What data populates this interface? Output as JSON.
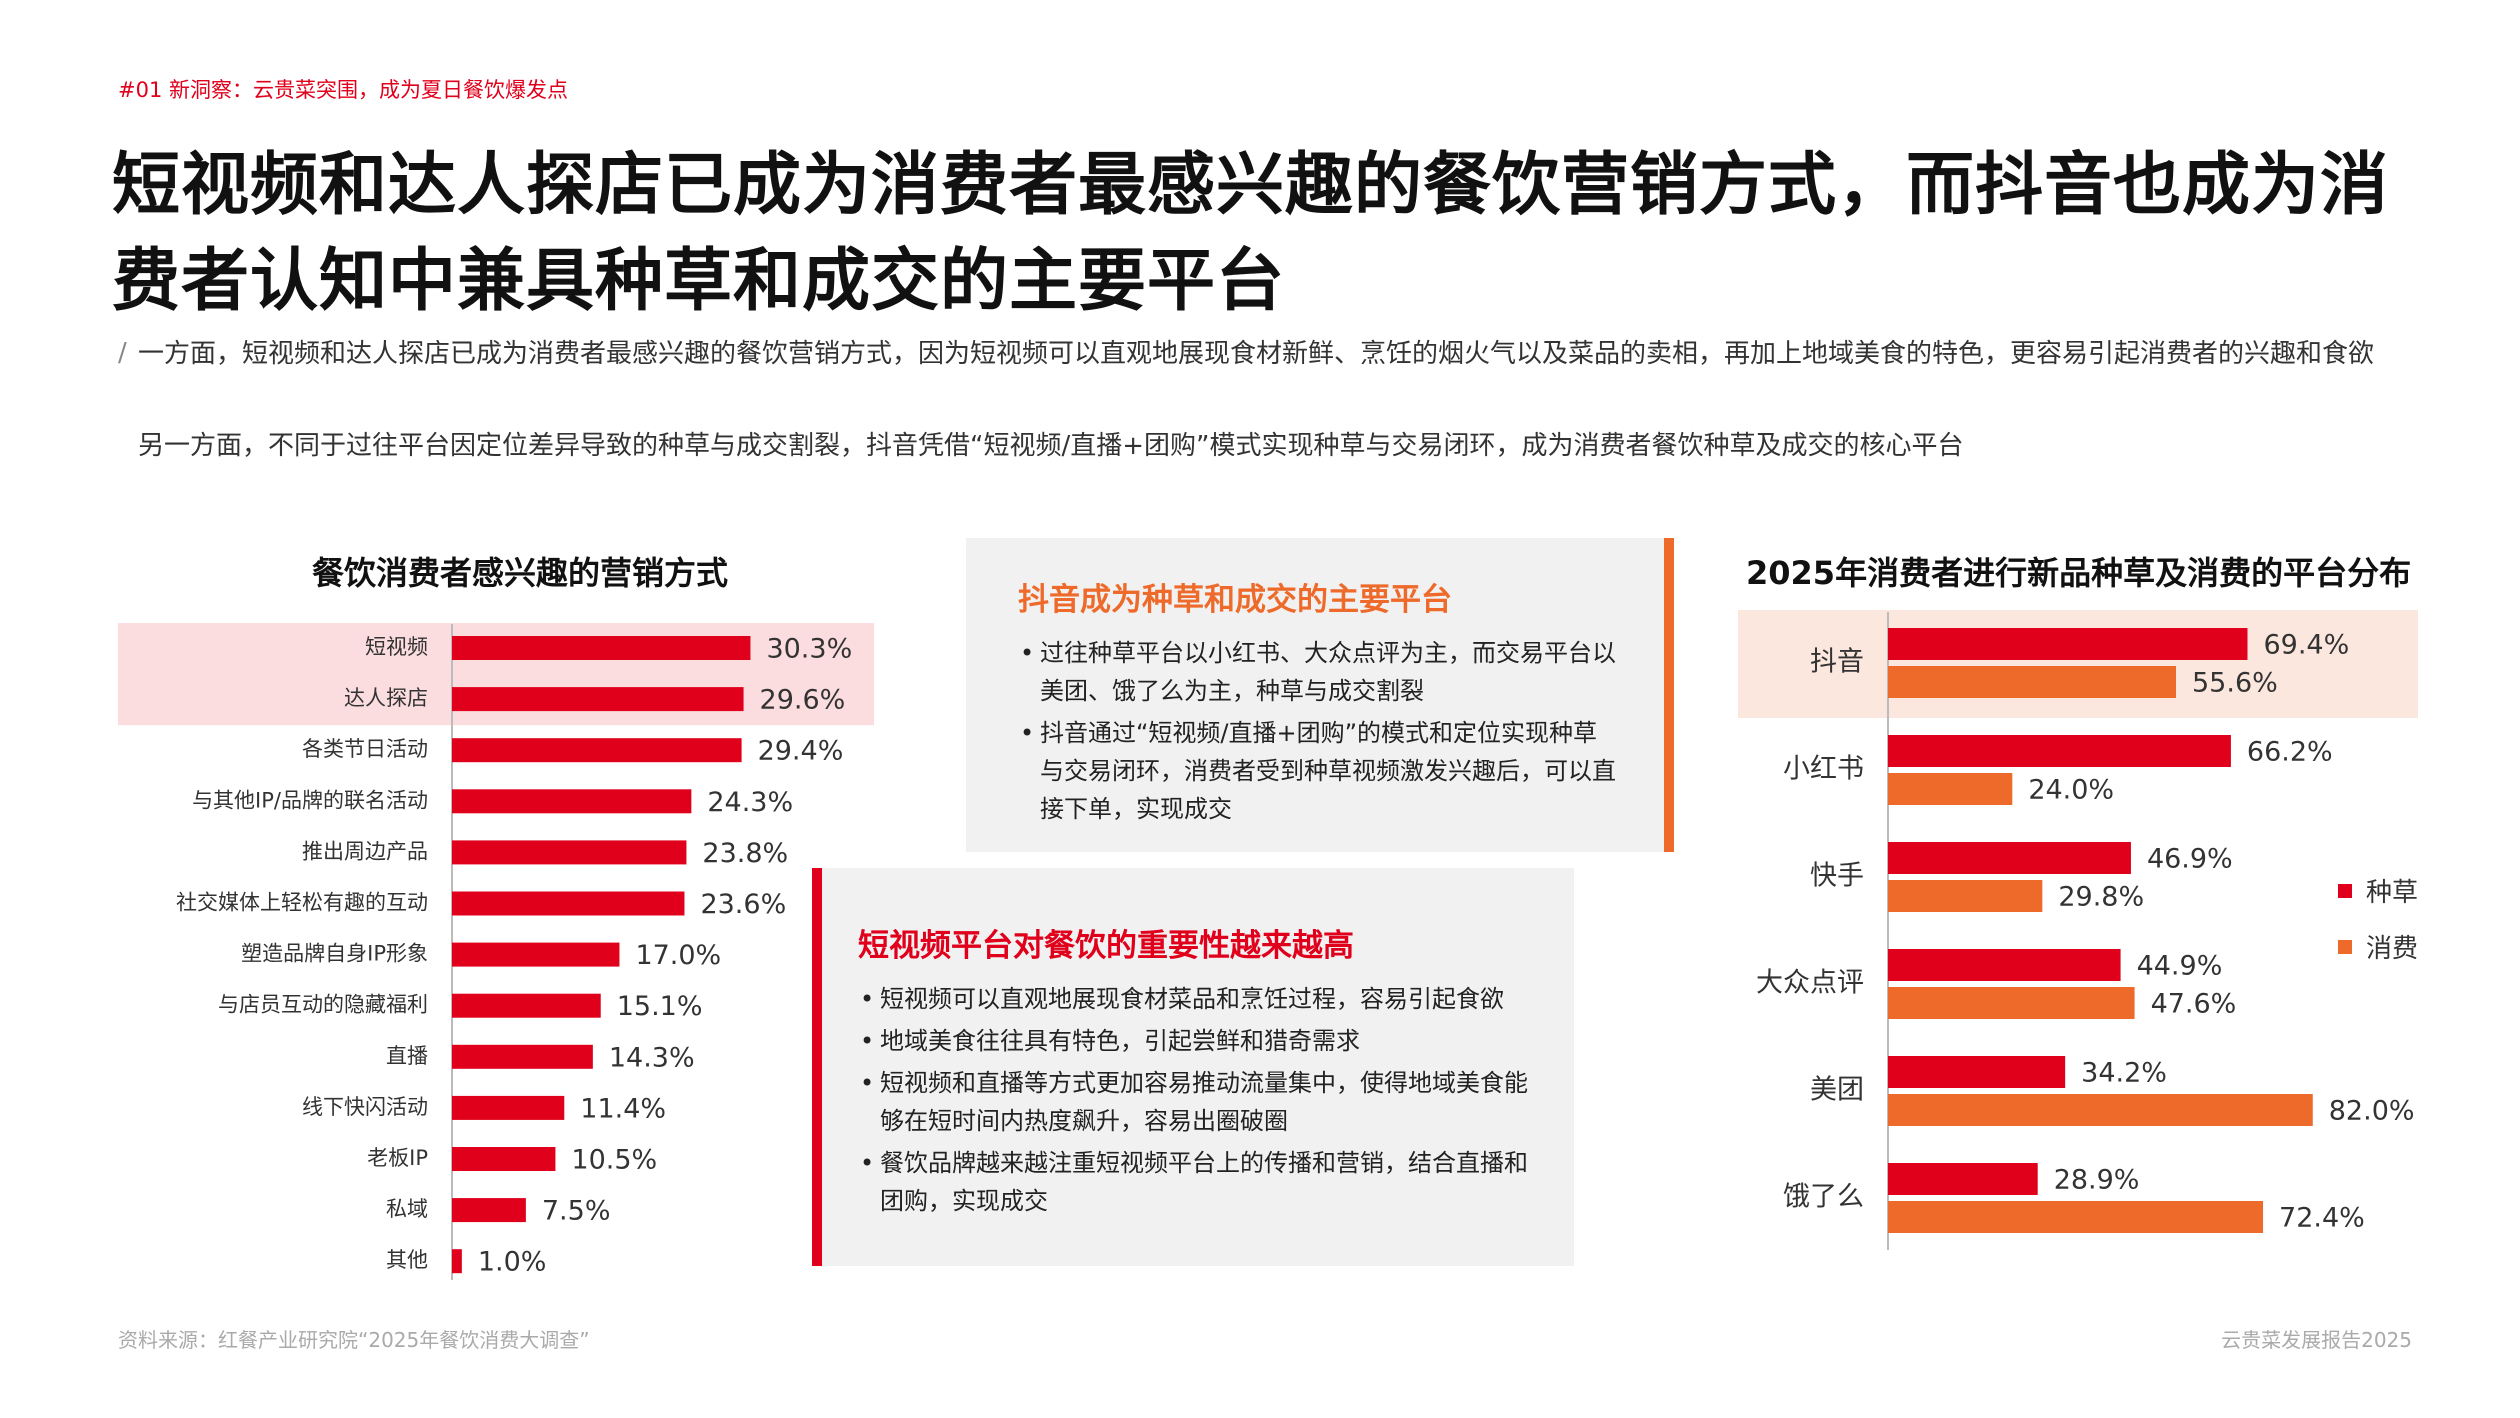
{
  "tag": "#01 新洞察：云贵菜突围，成为夏日餐饮爆发点",
  "headline": "短视频和达人探店已成为消费者最感兴趣的餐饮营销方式，而抖音也成为消费者认知中兼具种草和成交的主要平台",
  "intro": [
    "一方面，短视频和达人探店已成为消费者最感兴趣的餐饮营销方式，因为短视频可以直观地展现食材新鲜、烹饪的烟火气以及菜品的卖相，再加上地域美食的特色，更容易引起消费者的兴趣和食欲",
    "另一方面，不同于过往平台因定位差异导致的种草与成交割裂，抖音凭借“短视频/直播+团购”模式实现种草与交易闭环，成为消费者餐饮种草及成交的核心平台"
  ],
  "box1": {
    "title": "抖音成为种草和成交的主要平台",
    "bullets": [
      "过往种草平台以小红书、大众点评为主，而交易平台以美团、饿了么为主，种草与成交割裂",
      "抖音通过“短视频/直播+团购”的模式和定位实现种草与交易闭环，消费者受到种草视频激发兴趣后，可以直接下单，实现成交"
    ]
  },
  "box2": {
    "title": "短视频平台对餐饮的重要性越来越高",
    "bullets": [
      "短视频可以直观地展现食材菜品和烹饪过程，容易引起食欲",
      "地域美食往往具有特色，引起尝鲜和猎奇需求",
      "短视频和直播等方式更加容易推动流量集中，使得地域美食能够在短时间内热度飙升，容易出圈破圈",
      "餐饮品牌越来越注重短视频平台上的传播和营销，结合直播和团购，实现成交"
    ]
  },
  "footer": {
    "source": "资料来源：红餐产业研究院“2025年餐饮消费大调查”",
    "report": "云贵菜发展报告2025"
  },
  "colors": {
    "red": "#e0001b",
    "orange": "#ee6a2a",
    "highlight_left": "#fbdcdf",
    "highlight_right": "#fbe7dd",
    "box_bg": "#f1f1f1"
  },
  "chart_data": [
    {
      "type": "bar",
      "orientation": "horizontal",
      "title": "餐饮消费者感兴趣的营销方式",
      "categories": [
        "短视频",
        "达人探店",
        "各类节日活动",
        "与其他IP/品牌的联名活动",
        "推出周边产品",
        "社交媒体上轻松有趣的互动",
        "塑造品牌自身IP形象",
        "与店员互动的隐藏福利",
        "直播",
        "线下快闪活动",
        "老板IP",
        "私域",
        "其他"
      ],
      "values": [
        30.3,
        29.6,
        29.4,
        24.3,
        23.8,
        23.6,
        17.0,
        15.1,
        14.3,
        11.4,
        10.5,
        7.5,
        1.0
      ],
      "value_labels": [
        "30.3%",
        "29.6%",
        "29.4%",
        "24.3%",
        "23.8%",
        "23.6%",
        "17.0%",
        "15.1%",
        "14.3%",
        "11.4%",
        "10.5%",
        "7.5%",
        "1.0%"
      ],
      "highlighted": [
        "短视频",
        "达人探店"
      ],
      "color": "#e0001b"
    },
    {
      "type": "bar",
      "orientation": "horizontal",
      "title": "2025年消费者进行新品种草及消费的平台分布",
      "categories": [
        "抖音",
        "小红书",
        "快手",
        "大众点评",
        "美团",
        "饿了么"
      ],
      "series": [
        {
          "name": "种草",
          "color": "#e0001b",
          "values": [
            69.4,
            66.2,
            46.9,
            44.9,
            34.2,
            28.9
          ],
          "value_labels": [
            "69.4%",
            "66.2%",
            "46.9%",
            "44.9%",
            "34.2%",
            "28.9%"
          ]
        },
        {
          "name": "消费",
          "color": "#ee6a2a",
          "values": [
            55.6,
            24.0,
            29.8,
            47.6,
            82.0,
            72.4
          ],
          "value_labels": [
            "55.6%",
            "24.0%",
            "29.8%",
            "47.6%",
            "82.0%",
            "72.4%"
          ]
        }
      ],
      "highlighted": [
        "抖音"
      ],
      "legend": "right"
    }
  ]
}
